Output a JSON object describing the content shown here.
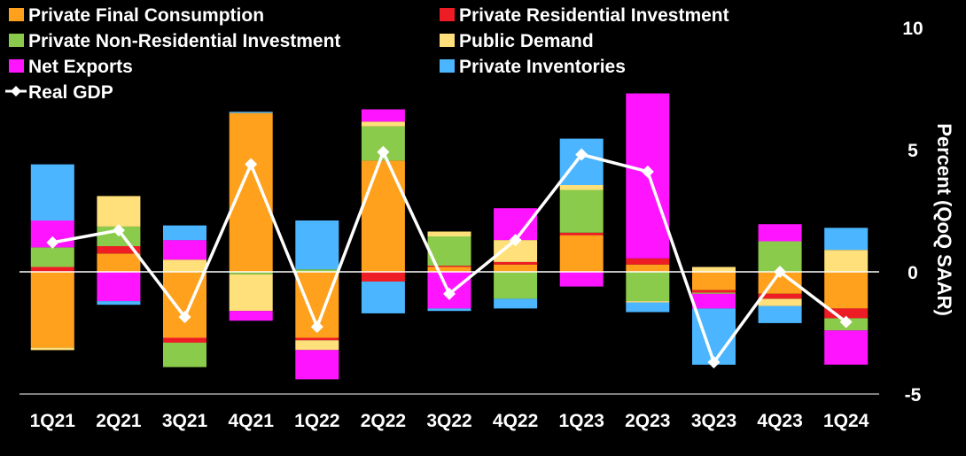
{
  "chart_data": {
    "type": "bar",
    "stacked": true,
    "title": "",
    "xlabel": "",
    "ylabel": "Percent (QoQ SAAR)",
    "ylim": [
      -5,
      10
    ],
    "yticks": [
      -5,
      0,
      5,
      10
    ],
    "y_axis_side": "right",
    "grid": false,
    "legend_position": "top-left",
    "categories": [
      "1Q21",
      "2Q21",
      "3Q21",
      "4Q21",
      "1Q22",
      "2Q22",
      "3Q22",
      "4Q22",
      "1Q23",
      "2Q23",
      "3Q23",
      "4Q23",
      "1Q24"
    ],
    "series": [
      {
        "name": "Private Final Consumption",
        "color": "#FFA11C",
        "values": [
          -3.1,
          0.75,
          -2.7,
          6.5,
          -2.7,
          4.55,
          0.2,
          0.3,
          1.5,
          0.3,
          -0.75,
          -0.9,
          -1.5
        ]
      },
      {
        "name": "Private Residential Investment",
        "color": "#EE1C25",
        "values": [
          0.2,
          0.3,
          -0.2,
          0.0,
          -0.1,
          -0.4,
          0.05,
          0.1,
          0.1,
          0.25,
          -0.1,
          -0.2,
          -0.4
        ]
      },
      {
        "name": "Private Non-Residential Investment",
        "color": "#8BCB4B",
        "values": [
          0.8,
          0.8,
          -1.0,
          -0.1,
          0.1,
          1.4,
          1.2,
          -1.1,
          1.75,
          -1.2,
          -0.05,
          1.25,
          -0.5
        ]
      },
      {
        "name": "Public Demand",
        "color": "#FFE07A",
        "values": [
          -0.1,
          1.25,
          0.5,
          -1.5,
          -0.4,
          0.2,
          0.2,
          0.9,
          0.2,
          -0.05,
          0.2,
          -0.3,
          0.9
        ]
      },
      {
        "name": "Net Exports",
        "color": "#FF14FF",
        "values": [
          1.1,
          -1.2,
          0.8,
          -0.4,
          -1.2,
          0.5,
          -1.5,
          1.3,
          -0.6,
          6.75,
          -0.6,
          0.7,
          -1.4
        ]
      },
      {
        "name": "Private Inventories",
        "color": "#4BB6FF",
        "values": [
          2.3,
          -0.15,
          0.6,
          0.05,
          2.0,
          -1.3,
          -0.1,
          -0.4,
          1.9,
          -0.4,
          -2.3,
          -0.7,
          0.9
        ]
      }
    ],
    "line_series": {
      "name": "Real GDP",
      "color": "#FFFFFF",
      "values": [
        1.2,
        1.7,
        -1.85,
        4.4,
        -2.25,
        4.9,
        -0.9,
        1.3,
        4.8,
        4.1,
        -3.7,
        0.0,
        -2.05
      ]
    }
  }
}
